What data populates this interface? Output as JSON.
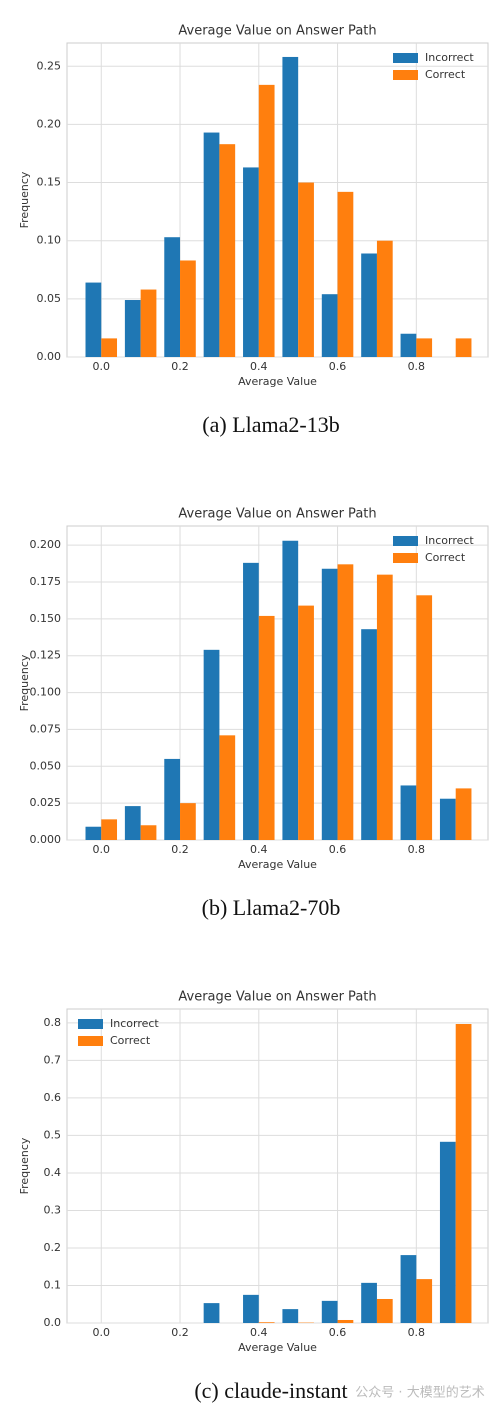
{
  "chart_data": [
    {
      "type": "bar",
      "title": "Average Value on Answer Path",
      "xlabel": "Average Value",
      "ylabel": "Frequency",
      "caption": "(a) Llama2-13b",
      "x": [
        0,
        0.1,
        0.2,
        0.3,
        0.4,
        0.5,
        0.6,
        0.7,
        0.8,
        0.9
      ],
      "series": [
        {
          "name": "Incorrect",
          "color": "#1f77b4",
          "values": [
            0.064,
            0.049,
            0.103,
            0.193,
            0.163,
            0.258,
            0.054,
            0.089,
            0.02,
            0
          ]
        },
        {
          "name": "Correct",
          "color": "#ff7f0e",
          "values": [
            0.016,
            0.058,
            0.083,
            0.183,
            0.234,
            0.15,
            0.142,
            0.1,
            0.016,
            0.016
          ]
        }
      ],
      "xlim": [
        -0.087,
        0.982
      ],
      "xticks": [
        {
          "value": 0,
          "label": "0.0"
        },
        0.2,
        0.4,
        0.6,
        0.8
      ],
      "ylim": [
        0,
        0.27
      ],
      "yticks": [
        {
          "value": 0,
          "label": "0.00"
        },
        0.05,
        {
          "value": 0.1,
          "label": "0.10"
        },
        0.15,
        {
          "value": 0.2,
          "label": "0.20"
        },
        0.25
      ],
      "grid": true,
      "legend": "upper right"
    },
    {
      "type": "bar",
      "title": "Average Value on Answer Path",
      "xlabel": "Average Value",
      "ylabel": "Frequency",
      "caption": "(b) Llama2-70b",
      "x": [
        0,
        0.1,
        0.2,
        0.3,
        0.4,
        0.5,
        0.6,
        0.7,
        0.8,
        0.9
      ],
      "series": [
        {
          "name": "Incorrect",
          "color": "#1f77b4",
          "values": [
            0.009,
            0.023,
            0.055,
            0.129,
            0.188,
            0.203,
            0.184,
            0.143,
            0.037,
            0.028
          ]
        },
        {
          "name": "Correct",
          "color": "#ff7f0e",
          "values": [
            0.014,
            0.01,
            0.025,
            0.071,
            0.152,
            0.159,
            0.187,
            0.18,
            0.166,
            0.035
          ]
        }
      ],
      "xlim": [
        -0.087,
        0.982
      ],
      "xticks": [
        {
          "value": 0,
          "label": "0.0"
        },
        0.2,
        0.4,
        0.6,
        0.8
      ],
      "ylim": [
        0,
        0.213
      ],
      "yticks": [
        {
          "value": 0,
          "label": "0.000"
        },
        0.025,
        {
          "value": 0.05,
          "label": "0.050"
        },
        0.075,
        {
          "value": 0.1,
          "label": "0.100"
        },
        0.125,
        {
          "value": 0.15,
          "label": "0.150"
        },
        0.175,
        {
          "value": 0.2,
          "label": "0.200"
        }
      ],
      "grid": true,
      "legend": "upper right"
    },
    {
      "type": "bar",
      "title": "Average Value on Answer Path",
      "xlabel": "Average Value",
      "ylabel": "Frequency",
      "caption": "(c) claude-instant",
      "x": [
        0,
        0.1,
        0.2,
        0.3,
        0.4,
        0.5,
        0.6,
        0.7,
        0.8,
        0.9
      ],
      "series": [
        {
          "name": "Incorrect",
          "color": "#1f77b4",
          "values": [
            0,
            0,
            0,
            0.053,
            0.075,
            0.037,
            0.059,
            0.107,
            0.181,
            0.483
          ]
        },
        {
          "name": "Correct",
          "color": "#ff7f0e",
          "values": [
            0,
            0,
            0,
            0,
            0.002,
            0.001,
            0.008,
            0.064,
            0.117,
            0.797
          ]
        }
      ],
      "xlim": [
        -0.087,
        0.982
      ],
      "xticks": [
        {
          "value": 0,
          "label": "0.0"
        },
        0.2,
        0.4,
        0.6,
        0.8
      ],
      "ylim": [
        0,
        0.837
      ],
      "yticks": [
        {
          "value": 0,
          "label": "0.0"
        },
        0.1,
        0.2,
        0.3,
        0.4,
        0.5,
        0.6,
        0.7,
        0.8
      ],
      "grid": true,
      "legend": "upper left"
    }
  ],
  "watermark": "公众号 · 大模型的艺术"
}
